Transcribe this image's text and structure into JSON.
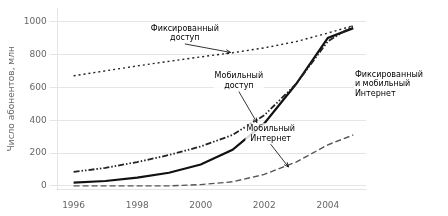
{
  "chart_data": {
    "type": "line",
    "y_label": "Число абонентов, млн",
    "x": [
      1996,
      1997,
      1998,
      1999,
      2000,
      2001,
      2002,
      2003,
      2004,
      2004.8
    ],
    "series": [
      {
        "color": "#222222",
        "line_style": "dotted",
        "values": [
          670,
          700,
          730,
          758,
          785,
          810,
          840,
          878,
          930,
          975
        ]
      },
      {
        "color": "#222222",
        "line_style": "dashdotdot",
        "values": [
          85,
          110,
          145,
          188,
          240,
          310,
          430,
          620,
          880,
          975
        ]
      },
      {
        "color": "#111111",
        "line_style": "solid",
        "values": [
          20,
          30,
          50,
          80,
          130,
          220,
          380,
          620,
          900,
          960
        ]
      },
      {
        "color": "#555555",
        "line_style": "dashed",
        "values": [
          0,
          0,
          0,
          0,
          8,
          25,
          70,
          145,
          250,
          310
        ]
      }
    ],
    "xlim": [
      1995.5,
      2005.2
    ],
    "ylim": [
      -20,
      1080
    ],
    "xticks": [
      1996,
      1998,
      2000,
      2002,
      2004
    ],
    "yticks": [
      0,
      200,
      400,
      600,
      800,
      1000
    ],
    "grid": "y",
    "annotations": [
      {
        "text": "Фиксированный\nдоступ",
        "x": 1999.5,
        "y": 870,
        "arrow_x": 2001.0,
        "arrow_y": 810
      },
      {
        "text": "Мобильный\nдоступ",
        "x": 2001.2,
        "y": 580,
        "arrow_x": 2001.8,
        "arrow_y": 375
      },
      {
        "text": "Фиксированный\nи мобильный\nИнтернет",
        "x": 2004.85,
        "y": 620
      },
      {
        "text": "Мобильный\nИнтернет",
        "x": 2002.2,
        "y": 260,
        "arrow_x": 2002.8,
        "arrow_y": 105
      }
    ]
  }
}
